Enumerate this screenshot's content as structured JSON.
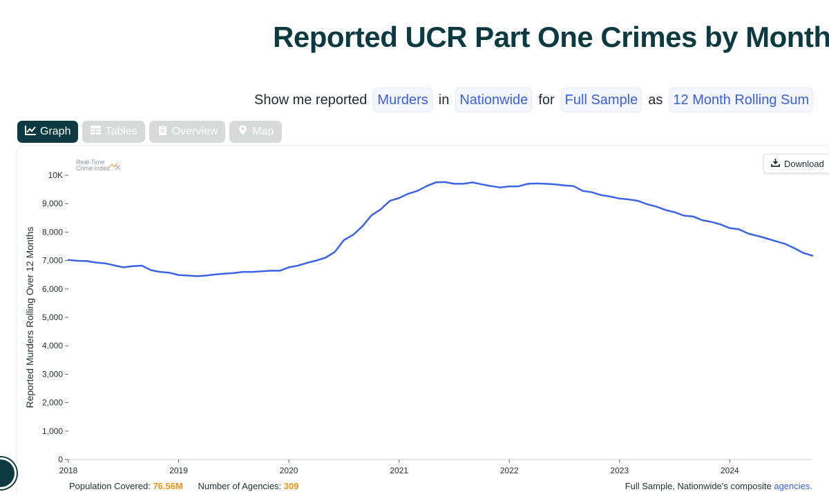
{
  "page": {
    "title": "Reported UCR Part One Crimes by Month"
  },
  "filters": {
    "prefix": "Show me reported",
    "crime": "Murders",
    "in_word": "in",
    "location": "Nationwide",
    "for_word": "for",
    "sample": "Full Sample",
    "as_word": "as",
    "measure": "12 Month Rolling Sum"
  },
  "tabs": [
    {
      "label": "Graph",
      "icon": "line-chart-icon",
      "active": true
    },
    {
      "label": "Tables",
      "icon": "table-icon",
      "active": false
    },
    {
      "label": "Overview",
      "icon": "clipboard-icon",
      "active": false
    },
    {
      "label": "Map",
      "icon": "map-pin-icon",
      "active": false
    }
  ],
  "download_label": "Download",
  "logo": {
    "line1": "Real-Time",
    "line2": "Crime Index"
  },
  "footer": {
    "population_label": "Population Covered:",
    "population_value": "76.56M",
    "agencies_label": "Number of Agencies:",
    "agencies_value": "309",
    "note": "Full Sample, Nationwide's composite",
    "note_link": "agencies."
  },
  "colors": {
    "line": "#3a63e8",
    "accent": "#f0921a",
    "brand": "#0c3a40"
  },
  "chart_data": {
    "type": "line",
    "title": "Reported UCR Part One Crimes by Month",
    "xlabel": "",
    "ylabel": "Reported Murders Rolling Over 12 Months",
    "ylim": [
      0,
      10000
    ],
    "yticks": [
      0,
      1000,
      2000,
      3000,
      4000,
      5000,
      6000,
      7000,
      8000,
      9000,
      10000
    ],
    "ytick_labels": [
      "0",
      "1,000",
      "2,000",
      "3,000",
      "4,000",
      "5,000",
      "6,000",
      "7,000",
      "8,000",
      "9,000",
      "10K"
    ],
    "xlim": [
      2018.0,
      2024.75
    ],
    "xticks": [
      2018,
      2019,
      2020,
      2021,
      2022,
      2023,
      2024
    ],
    "xtick_labels": [
      "2018",
      "2019",
      "2020",
      "2021",
      "2022",
      "2023",
      "2024"
    ],
    "grid": false,
    "series": [
      {
        "x": [
          2018.0,
          2018.083,
          2018.167,
          2018.25,
          2018.333,
          2018.417,
          2018.5,
          2018.583,
          2018.667,
          2018.75,
          2018.833,
          2018.917,
          2019.0,
          2019.083,
          2019.167,
          2019.25,
          2019.333,
          2019.417,
          2019.5,
          2019.583,
          2019.667,
          2019.75,
          2019.833,
          2019.917,
          2020.0,
          2020.083,
          2020.167,
          2020.25,
          2020.333,
          2020.417,
          2020.5,
          2020.583,
          2020.667,
          2020.75,
          2020.833,
          2020.917,
          2021.0,
          2021.083,
          2021.167,
          2021.25,
          2021.333,
          2021.417,
          2021.5,
          2021.583,
          2021.667,
          2021.75,
          2021.833,
          2021.917,
          2022.0,
          2022.083,
          2022.167,
          2022.25,
          2022.333,
          2022.417,
          2022.5,
          2022.583,
          2022.667,
          2022.75,
          2022.833,
          2022.917,
          2023.0,
          2023.083,
          2023.167,
          2023.25,
          2023.333,
          2023.417,
          2023.5,
          2023.583,
          2023.667,
          2023.75,
          2023.833,
          2023.917,
          2024.0,
          2024.083,
          2024.167,
          2024.25,
          2024.333,
          2024.417,
          2024.5,
          2024.583,
          2024.667,
          2024.75
        ],
        "values": [
          7020,
          6990,
          6980,
          6930,
          6900,
          6830,
          6760,
          6800,
          6820,
          6660,
          6600,
          6570,
          6490,
          6470,
          6450,
          6470,
          6510,
          6540,
          6560,
          6600,
          6600,
          6620,
          6640,
          6640,
          6760,
          6820,
          6920,
          7000,
          7100,
          7300,
          7720,
          7900,
          8200,
          8590,
          8800,
          9100,
          9200,
          9350,
          9450,
          9620,
          9750,
          9760,
          9700,
          9700,
          9750,
          9680,
          9620,
          9570,
          9610,
          9610,
          9700,
          9710,
          9700,
          9680,
          9640,
          9620,
          9450,
          9400,
          9300,
          9250,
          9180,
          9150,
          9100,
          8980,
          8900,
          8780,
          8700,
          8580,
          8550,
          8420,
          8360,
          8270,
          8140,
          8100,
          7950,
          7870,
          7780,
          7680,
          7590,
          7440,
          7270,
          7170
        ]
      }
    ]
  }
}
